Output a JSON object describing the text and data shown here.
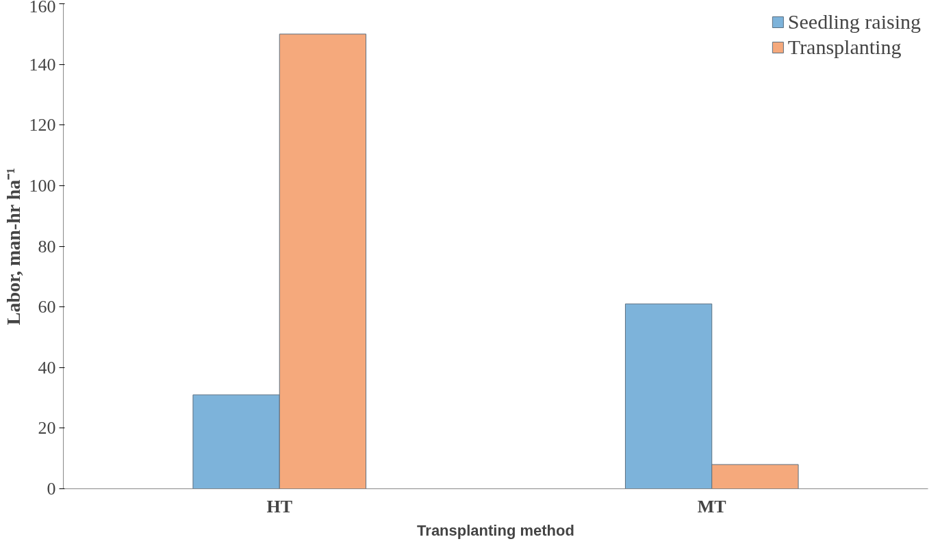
{
  "chart_data": {
    "type": "bar",
    "xlabel": "Transplanting method",
    "ylabel": "Labor, man-hr ha⁻¹",
    "categories": [
      "HT",
      "MT"
    ],
    "series": [
      {
        "name": "Seedling raising",
        "color": "#7db3da",
        "values": [
          31,
          61
        ]
      },
      {
        "name": "Transplanting",
        "color": "#f5a97c",
        "values": [
          150,
          8
        ]
      }
    ],
    "ylim": [
      0,
      160
    ],
    "yticks": [
      0,
      20,
      40,
      60,
      80,
      100,
      120,
      140,
      160
    ],
    "grid": false,
    "legend": "top right"
  }
}
